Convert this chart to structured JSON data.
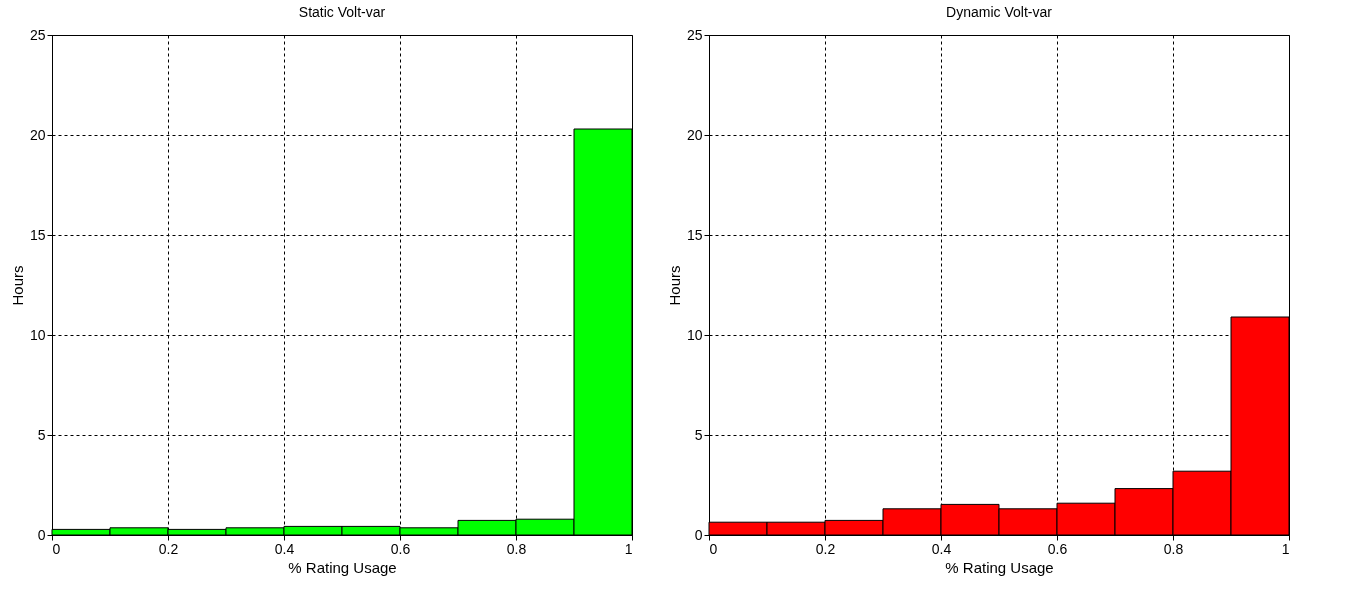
{
  "chart_data": [
    {
      "type": "histogram",
      "title": "Static Volt-var",
      "xlabel": "% Rating Usage",
      "ylabel": "Hours",
      "bins": [
        0,
        0.1,
        0.2,
        0.3,
        0.4,
        0.5,
        0.6,
        0.7,
        0.8,
        0.9,
        1
      ],
      "values": [
        0.28,
        0.36,
        0.28,
        0.36,
        0.43,
        0.43,
        0.36,
        0.73,
        0.79,
        20.3
      ],
      "color": "#00ff00",
      "xlim": [
        0,
        1
      ],
      "ylim": [
        0,
        25
      ],
      "xticks": [
        0,
        0.2,
        0.4,
        0.6,
        0.8,
        1
      ],
      "yticks": [
        0,
        5,
        10,
        15,
        20,
        25
      ],
      "grid": true
    },
    {
      "type": "histogram",
      "title": "Dynamic Volt-var",
      "xlabel": "% Rating Usage",
      "ylabel": "Hours",
      "bins": [
        0,
        0.1,
        0.2,
        0.3,
        0.4,
        0.5,
        0.6,
        0.7,
        0.8,
        0.9,
        1
      ],
      "values": [
        0.64,
        0.64,
        0.73,
        1.31,
        1.53,
        1.31,
        1.59,
        2.32,
        3.19,
        10.9
      ],
      "color": "#ff0000",
      "xlim": [
        0,
        1
      ],
      "ylim": [
        0,
        25
      ],
      "xticks": [
        0,
        0.2,
        0.4,
        0.6,
        0.8,
        1
      ],
      "yticks": [
        0,
        5,
        10,
        15,
        20,
        25
      ],
      "grid": true
    }
  ]
}
